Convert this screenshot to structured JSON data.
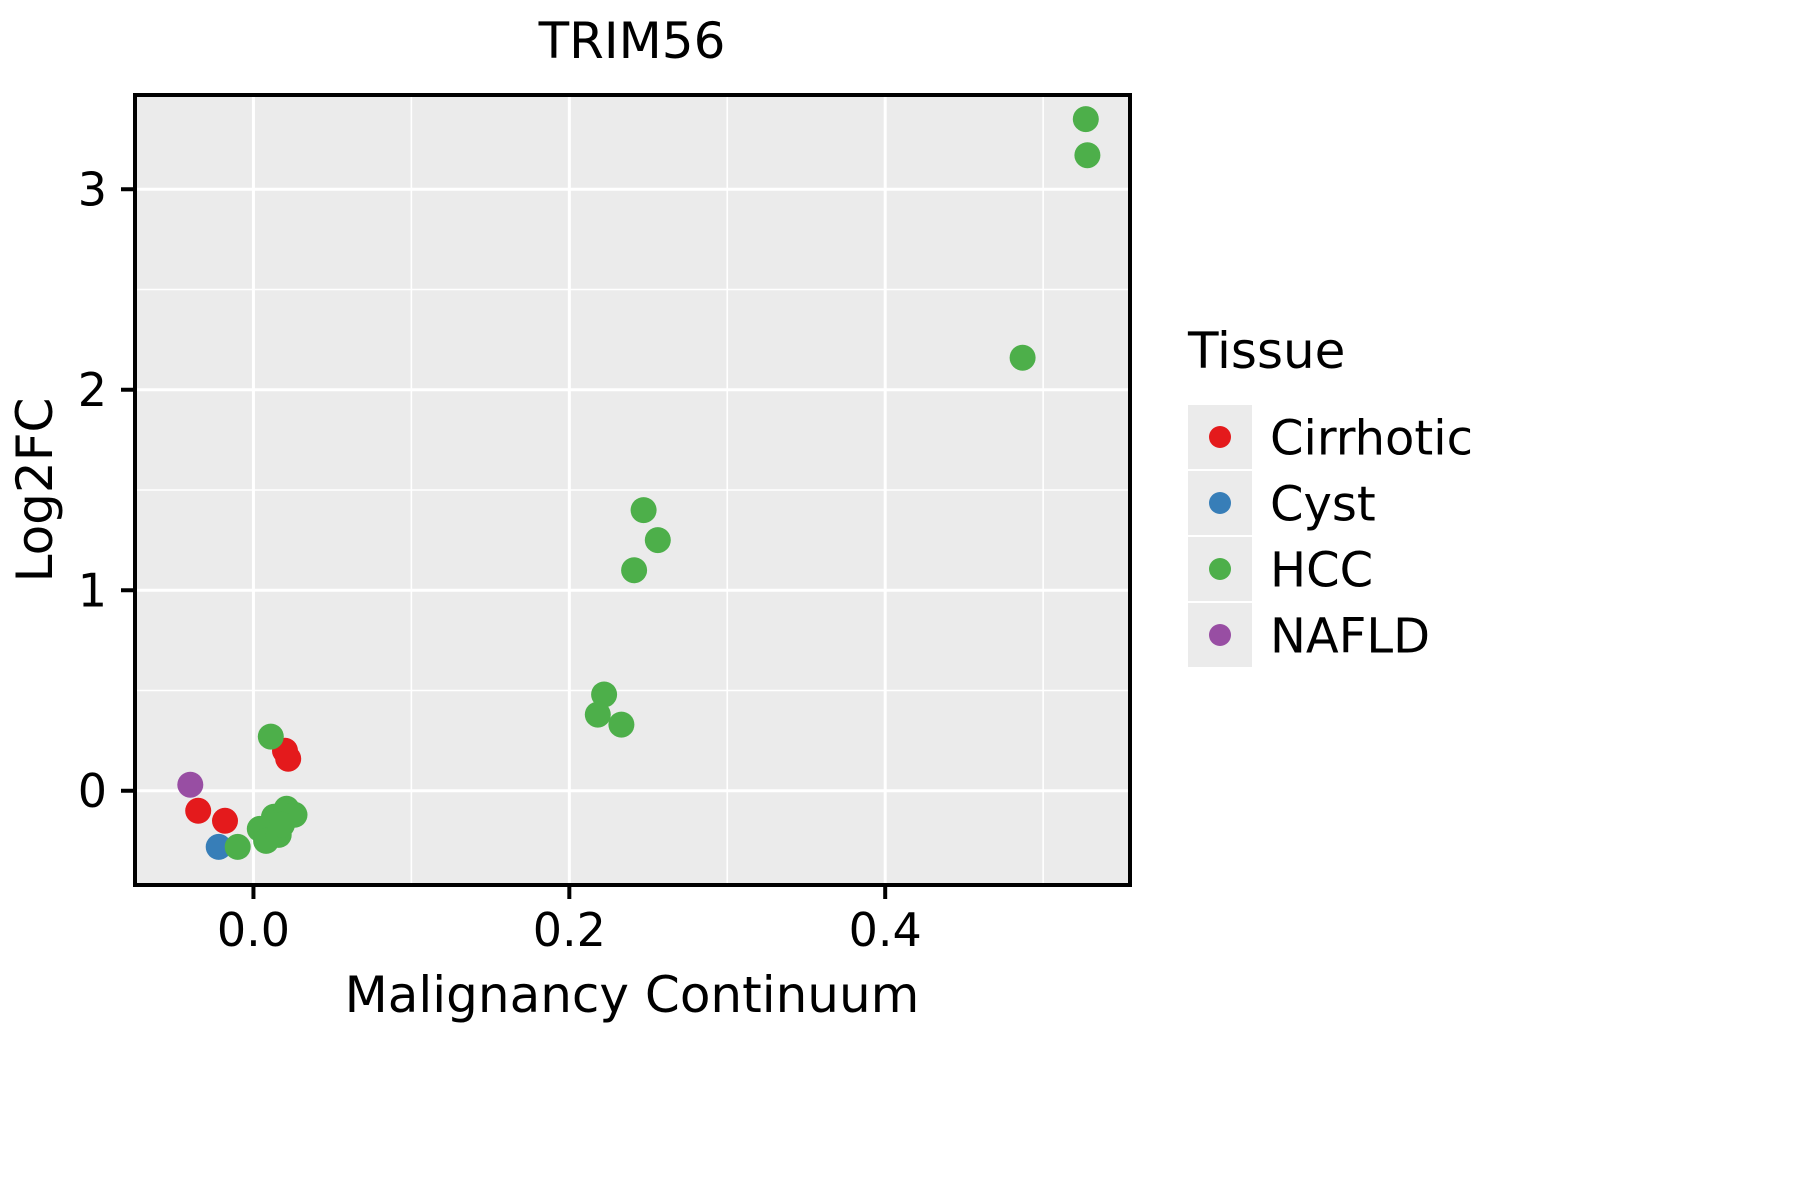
{
  "title": "TRIM56",
  "chart_data": {
    "type": "scatter",
    "title": "TRIM56",
    "xlabel": "Malignancy Continuum",
    "ylabel": "Log2FC",
    "xlim": [
      -0.075,
      0.555
    ],
    "ylim": [
      -0.47,
      3.47
    ],
    "grid": true,
    "panel_background": "#EBEBEB",
    "grid_color": "#FFFFFF",
    "legend_position": "right",
    "legend_title": "Tissue",
    "x_ticks": [
      {
        "value": 0.0,
        "label": "0.0"
      },
      {
        "value": 0.2,
        "label": "0.2"
      },
      {
        "value": 0.4,
        "label": "0.4"
      }
    ],
    "y_ticks": [
      {
        "value": 0,
        "label": "0"
      },
      {
        "value": 1,
        "label": "1"
      },
      {
        "value": 2,
        "label": "2"
      },
      {
        "value": 3,
        "label": "3"
      }
    ],
    "x_minor": [
      0.1,
      0.3,
      0.5
    ],
    "y_minor": [
      0.5,
      1.5,
      2.5
    ],
    "series": [
      {
        "name": "Cirrhotic",
        "color": "#E41A1C",
        "points": [
          [
            -0.035,
            -0.1
          ],
          [
            -0.018,
            -0.15
          ],
          [
            0.02,
            0.2
          ],
          [
            0.022,
            0.16
          ]
        ]
      },
      {
        "name": "Cyst",
        "color": "#377EB8",
        "points": [
          [
            -0.022,
            -0.28
          ]
        ]
      },
      {
        "name": "HCC",
        "color": "#4DAF4A",
        "points": [
          [
            0.527,
            3.35
          ],
          [
            0.528,
            3.17
          ],
          [
            0.487,
            2.16
          ],
          [
            0.247,
            1.4
          ],
          [
            0.256,
            1.25
          ],
          [
            0.241,
            1.1
          ],
          [
            0.222,
            0.48
          ],
          [
            0.218,
            0.38
          ],
          [
            0.233,
            0.33
          ],
          [
            0.011,
            0.27
          ],
          [
            -0.01,
            -0.28
          ],
          [
            0.004,
            -0.19
          ],
          [
            0.008,
            -0.25
          ],
          [
            0.013,
            -0.13
          ],
          [
            0.016,
            -0.22
          ],
          [
            0.021,
            -0.09
          ],
          [
            0.026,
            -0.12
          ],
          [
            0.018,
            -0.17
          ]
        ]
      },
      {
        "name": "NAFLD",
        "color": "#984EA3",
        "points": [
          [
            -0.04,
            0.03
          ]
        ]
      }
    ]
  }
}
